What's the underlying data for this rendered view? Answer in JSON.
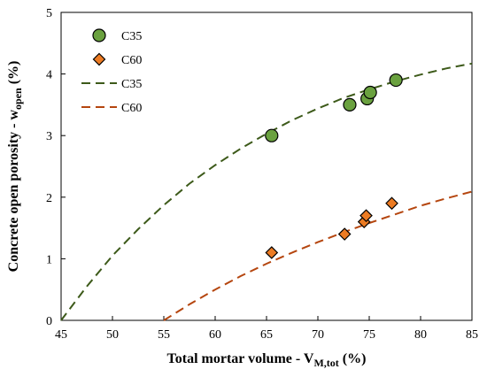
{
  "chart_data": {
    "type": "scatter",
    "xlim": [
      45,
      85
    ],
    "ylim": [
      0,
      5
    ],
    "xticks": [
      45,
      50,
      55,
      60,
      65,
      70,
      75,
      80,
      85
    ],
    "yticks": [
      0,
      1,
      2,
      3,
      4,
      5
    ],
    "grid": false,
    "legend_position": "top-left",
    "xlabel": {
      "main": "Total mortar volume - V",
      "sub": "M,tot",
      "tail": " (%)"
    },
    "ylabel": {
      "main": "Concrete open porosity - w",
      "sub": "open",
      "tail": " (%)"
    },
    "series": [
      {
        "name": "C35",
        "kind": "points",
        "marker": "circle",
        "color": "#6aa13f",
        "edge": "#000000",
        "x": [
          65.5,
          73.1,
          74.8,
          75.1,
          77.6
        ],
        "y": [
          3.0,
          3.5,
          3.6,
          3.7,
          3.9
        ]
      },
      {
        "name": "C60",
        "kind": "points",
        "marker": "diamond",
        "color": "#ec7b23",
        "edge": "#000000",
        "x": [
          65.5,
          72.6,
          74.5,
          74.7,
          77.2
        ],
        "y": [
          1.1,
          1.4,
          1.6,
          1.7,
          1.9
        ]
      },
      {
        "name": "C35",
        "kind": "fit",
        "line_style": "dashed",
        "color": "#3d5a1a",
        "x": [
          45,
          47.5,
          50,
          52.5,
          55,
          57.5,
          60,
          62.5,
          65,
          67.5,
          70,
          72.5,
          75,
          77.5,
          80,
          82.5,
          85
        ],
        "y": [
          0,
          0.55,
          1.05,
          1.48,
          1.87,
          2.22,
          2.52,
          2.79,
          3.03,
          3.25,
          3.44,
          3.61,
          3.75,
          3.88,
          3.99,
          4.09,
          4.17
        ]
      },
      {
        "name": "C60",
        "kind": "fit",
        "line_style": "dashed",
        "color": "#b5460f",
        "x": [
          55,
          57.5,
          60,
          62.5,
          65,
          67.5,
          70,
          72.5,
          75,
          77.5,
          80,
          82.5,
          85
        ],
        "y": [
          0,
          0.26,
          0.5,
          0.72,
          0.92,
          1.1,
          1.27,
          1.43,
          1.58,
          1.72,
          1.86,
          1.98,
          2.09
        ]
      }
    ]
  }
}
